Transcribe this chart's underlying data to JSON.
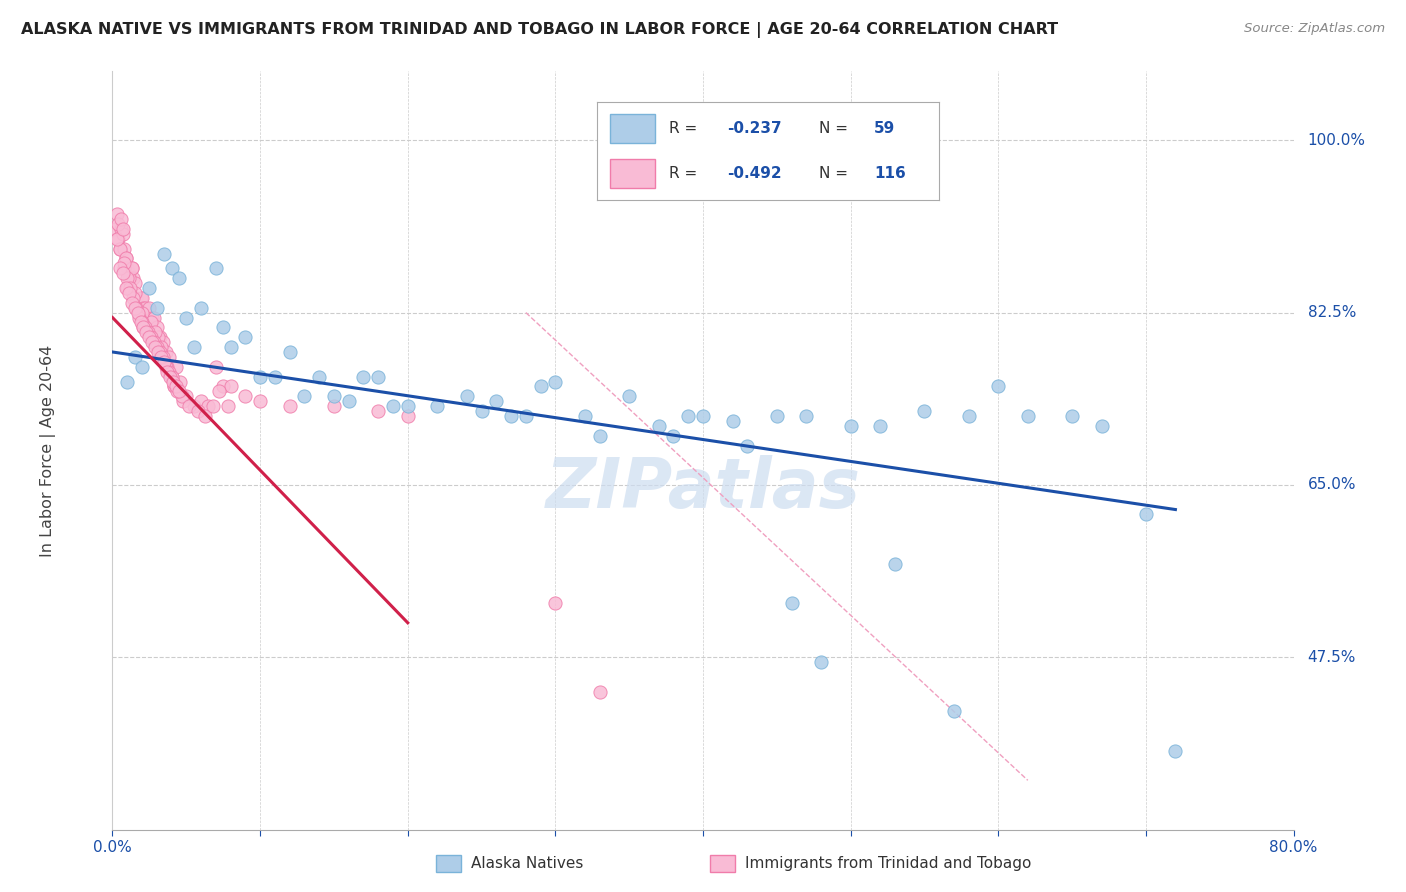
{
  "title": "ALASKA NATIVE VS IMMIGRANTS FROM TRINIDAD AND TOBAGO IN LABOR FORCE | AGE 20-64 CORRELATION CHART",
  "source": "Source: ZipAtlas.com",
  "ylabel_ticks": [
    100.0,
    82.5,
    65.0,
    47.5
  ],
  "ylabel_labels": [
    "100.0%",
    "82.5%",
    "65.0%",
    "47.5%"
  ],
  "legend_label1": "Alaska Natives",
  "legend_label2": "Immigrants from Trinidad and Tobago",
  "blue_color": "#7ab3d9",
  "blue_fill": "#aecde8",
  "pink_color": "#f07caa",
  "pink_fill": "#f9bbd5",
  "trend_blue": "#1b4fa8",
  "trend_pink": "#d0204a",
  "watermark": "ZIPatlas",
  "watermark_color": "#cdddf0",
  "xlim": [
    0.0,
    80.0
  ],
  "ylim": [
    30.0,
    107.0
  ],
  "blue_line_x": [
    0.0,
    72.0
  ],
  "blue_line_y": [
    78.5,
    62.5
  ],
  "pink_line_x": [
    0.0,
    20.0
  ],
  "pink_line_y": [
    82.0,
    51.0
  ],
  "diag_line_x": [
    28.0,
    62.0
  ],
  "diag_line_y": [
    82.5,
    35.0
  ],
  "blue_x": [
    1.0,
    1.5,
    2.0,
    2.5,
    3.0,
    3.5,
    4.0,
    4.5,
    5.0,
    5.5,
    6.0,
    7.0,
    7.5,
    8.0,
    9.0,
    10.0,
    11.0,
    12.0,
    13.0,
    14.0,
    15.0,
    16.0,
    17.0,
    18.0,
    19.0,
    20.0,
    22.0,
    24.0,
    25.0,
    26.0,
    27.0,
    28.0,
    29.0,
    30.0,
    32.0,
    33.0,
    35.0,
    37.0,
    38.0,
    39.0,
    40.0,
    42.0,
    43.0,
    45.0,
    47.0,
    50.0,
    52.0,
    55.0,
    58.0,
    60.0,
    62.0,
    65.0,
    67.0,
    70.0,
    72.0,
    48.0,
    53.0,
    46.0,
    57.0
  ],
  "blue_y": [
    75.5,
    78.0,
    77.0,
    85.0,
    83.0,
    88.5,
    87.0,
    86.0,
    82.0,
    79.0,
    83.0,
    87.0,
    81.0,
    79.0,
    80.0,
    76.0,
    76.0,
    78.5,
    74.0,
    76.0,
    74.0,
    73.5,
    76.0,
    76.0,
    73.0,
    73.0,
    73.0,
    74.0,
    72.5,
    73.5,
    72.0,
    72.0,
    75.0,
    75.5,
    72.0,
    70.0,
    74.0,
    71.0,
    70.0,
    72.0,
    72.0,
    71.5,
    69.0,
    72.0,
    72.0,
    71.0,
    71.0,
    72.5,
    72.0,
    75.0,
    72.0,
    72.0,
    71.0,
    62.0,
    38.0,
    47.0,
    57.0,
    53.0,
    42.0
  ],
  "pink_x": [
    0.2,
    0.3,
    0.4,
    0.5,
    0.6,
    0.7,
    0.8,
    0.9,
    1.0,
    1.1,
    1.2,
    1.3,
    1.4,
    1.5,
    1.6,
    1.7,
    1.8,
    1.9,
    2.0,
    2.1,
    2.2,
    2.3,
    2.4,
    2.5,
    2.7,
    2.8,
    3.0,
    3.2,
    3.4,
    3.6,
    3.8,
    4.0,
    4.3,
    4.6,
    5.0,
    5.5,
    6.0,
    6.5,
    7.0,
    7.5,
    8.0,
    9.0,
    10.0,
    12.0,
    15.0,
    18.0,
    20.0,
    4.8,
    3.1,
    2.6,
    1.0,
    0.8,
    1.5,
    2.0,
    0.5,
    0.3,
    0.4,
    0.6,
    0.7,
    0.9,
    1.1,
    1.3,
    2.1,
    2.9,
    3.3,
    3.7,
    4.2,
    4.7,
    5.2,
    5.8,
    6.3,
    6.8,
    7.2,
    7.8,
    0.8,
    1.0,
    1.2,
    1.4,
    1.6,
    1.8,
    2.0,
    2.2,
    2.4,
    2.6,
    2.8,
    3.0,
    3.2,
    3.4,
    3.6,
    3.8,
    4.0,
    4.2,
    4.4,
    0.5,
    0.7,
    0.9,
    1.1,
    1.3,
    1.5,
    1.7,
    1.9,
    2.1,
    2.3,
    2.5,
    2.7,
    2.9,
    3.1,
    3.3,
    3.5,
    3.7,
    3.9,
    4.1,
    4.3,
    4.5,
    30.0,
    33.0
  ],
  "pink_y": [
    91.0,
    92.5,
    90.0,
    89.0,
    91.0,
    90.5,
    89.0,
    88.0,
    87.0,
    86.5,
    86.0,
    87.0,
    86.0,
    85.5,
    84.0,
    83.0,
    82.5,
    84.0,
    84.0,
    83.0,
    83.0,
    82.0,
    81.5,
    83.0,
    82.0,
    82.0,
    81.0,
    80.0,
    79.5,
    78.5,
    78.0,
    76.0,
    77.0,
    75.5,
    74.0,
    73.0,
    73.5,
    73.0,
    77.0,
    75.0,
    75.0,
    74.0,
    73.5,
    73.0,
    73.0,
    72.5,
    72.0,
    73.5,
    80.0,
    81.5,
    85.0,
    87.0,
    84.5,
    82.5,
    89.0,
    90.0,
    91.5,
    92.0,
    91.0,
    88.0,
    86.0,
    87.0,
    81.0,
    80.5,
    79.0,
    77.0,
    75.0,
    74.0,
    73.0,
    72.5,
    72.0,
    73.0,
    74.5,
    73.0,
    87.5,
    86.0,
    85.0,
    84.0,
    83.0,
    82.0,
    81.5,
    81.0,
    80.5,
    80.0,
    79.5,
    79.0,
    78.5,
    78.0,
    77.0,
    76.5,
    76.0,
    75.0,
    74.5,
    87.0,
    86.5,
    85.0,
    84.5,
    83.5,
    83.0,
    82.5,
    81.5,
    81.0,
    80.5,
    80.0,
    79.5,
    79.0,
    78.5,
    78.0,
    77.5,
    76.5,
    76.0,
    75.5,
    75.0,
    74.5,
    53.0,
    44.0
  ]
}
